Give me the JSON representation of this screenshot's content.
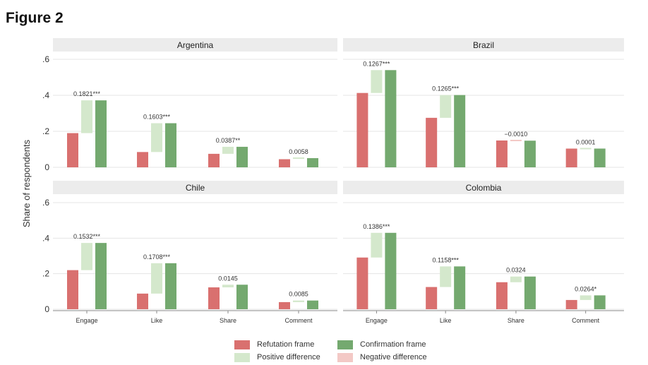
{
  "figure_title": "Figure 2",
  "colors": {
    "refutation": "#d9706f",
    "confirmation": "#74a96f",
    "positive_difference": "#d4e8cc",
    "negative_difference": "#f3c9c6",
    "panel_header": "#ececec",
    "grid": "#e4e4e4"
  },
  "legend": {
    "refutation": "Refutation frame",
    "confirmation": "Confirmation frame",
    "positive_difference": "Positive difference",
    "negative_difference": "Negative difference"
  },
  "chart_data": {
    "type": "bar",
    "layout": "2x2 facet grid, floating difference bar between each pair",
    "ylabel": "Share of respondents",
    "ylim": [
      0,
      0.6
    ],
    "yticks": [
      0,
      0.2,
      0.4,
      0.6
    ],
    "ytick_labels": [
      "0",
      ".2",
      ".4",
      ".6"
    ],
    "categories": [
      "Engage",
      "Like",
      "Share",
      "Comment"
    ],
    "legend_position": "bottom",
    "grid": true,
    "panels": [
      {
        "title": "Argentina",
        "refutation": [
          0.19,
          0.085,
          0.075,
          0.045
        ],
        "confirmation": [
          0.372,
          0.245,
          0.114,
          0.051
        ],
        "differences": [
          "0.1821***",
          "0.1603***",
          "0.0387**",
          "0.0058"
        ]
      },
      {
        "title": "Brazil",
        "refutation": [
          0.413,
          0.275,
          0.149,
          0.104
        ],
        "confirmation": [
          0.54,
          0.4015,
          0.148,
          0.1041
        ],
        "differences": [
          "0.1267***",
          "0.1265***",
          "−0.0010",
          "0.0001"
        ]
      },
      {
        "title": "Chile",
        "refutation": [
          0.22,
          0.088,
          0.123,
          0.04
        ],
        "confirmation": [
          0.373,
          0.259,
          0.138,
          0.049
        ],
        "differences": [
          "0.1532***",
          "0.1708***",
          "0.0145",
          "0.0085"
        ]
      },
      {
        "title": "Colombia",
        "refutation": [
          0.291,
          0.125,
          0.152,
          0.052
        ],
        "confirmation": [
          0.43,
          0.241,
          0.184,
          0.078
        ],
        "differences": [
          "0.1386***",
          "0.1158***",
          "0.0324",
          "0.0264*"
        ]
      }
    ]
  }
}
